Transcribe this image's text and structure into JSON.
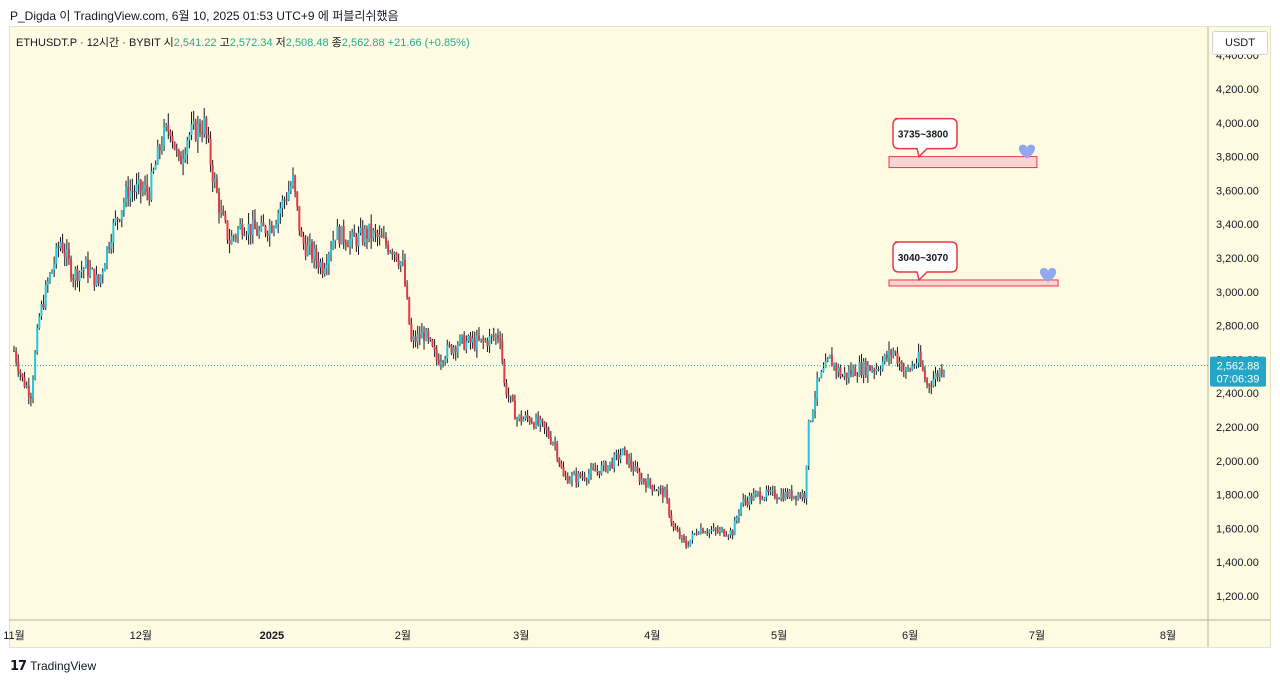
{
  "header": {
    "text": "P_Digda 이 TradingView.com, 6월 10, 2025 01:53 UTC+9 에 퍼블리쉬했음"
  },
  "symbol": {
    "name": "ETHUSDT.P · 12시간 · BYBIT",
    "open_label": "시",
    "open": "2,541.22",
    "high_label": "고",
    "high": "2,572.34",
    "low_label": "저",
    "low": "2,508.48",
    "close_label": "종",
    "close": "2,562.88",
    "change": "+21.66 (+0.85%)"
  },
  "unit_label": "USDT",
  "price_tag": {
    "price": "2,562.88",
    "countdown": "07:06:39"
  },
  "footer": {
    "logo_text": "TradingView",
    "logo_icon": "tradingview-logo-icon"
  },
  "chart_data": {
    "type": "candlestick",
    "y_axis": {
      "ticks": [
        1200,
        1400,
        1600,
        1800,
        2000,
        2200,
        2400,
        2600,
        2800,
        3000,
        3200,
        3400,
        3600,
        3800,
        4000,
        4200,
        4400
      ],
      "tick_labels": [
        "1,200.00",
        "1,400.00",
        "1,600.00",
        "1,800.00",
        "2,000.00",
        "2,200.00",
        "2,400.00",
        "2,600.00",
        "2,800.00",
        "3,000.00",
        "3,200.00",
        "3,400.00",
        "3,600.00",
        "3,800.00",
        "4,000.00",
        "4,200.00",
        "4,400.00"
      ],
      "position": "right"
    },
    "x_axis": {
      "labels": [
        "11월",
        "12월",
        "2025",
        "2월",
        "3월",
        "4월",
        "5월",
        "6월",
        "7월",
        "8월"
      ],
      "dates": [
        "2024-11-01",
        "2024-12-01",
        "2025-01-01",
        "2025-02-01",
        "2025-03-01",
        "2025-04-01",
        "2025-05-01",
        "2025-06-01",
        "2025-07-01",
        "2025-08-01"
      ]
    },
    "current_price": 2562.88,
    "up_color": "#26c6da",
    "down_color": "#e53945",
    "wick_color": "#131722",
    "anchors": [
      [
        "2024-11-01",
        2650
      ],
      [
        "2024-11-03",
        2480
      ],
      [
        "2024-11-05",
        2400
      ],
      [
        "2024-11-07",
        2850
      ],
      [
        "2024-11-09",
        3050
      ],
      [
        "2024-11-12",
        3300
      ],
      [
        "2024-11-15",
        3100
      ],
      [
        "2024-11-18",
        3150
      ],
      [
        "2024-11-21",
        3050
      ],
      [
        "2024-11-24",
        3350
      ],
      [
        "2024-11-28",
        3600
      ],
      [
        "2024-12-03",
        3600
      ],
      [
        "2024-12-06",
        3900
      ],
      [
        "2024-12-08",
        3980
      ],
      [
        "2024-12-10",
        3750
      ],
      [
        "2024-12-12",
        3920
      ],
      [
        "2024-12-16",
        3990
      ],
      [
        "2024-12-18",
        3700
      ],
      [
        "2024-12-20",
        3450
      ],
      [
        "2024-12-22",
        3300
      ],
      [
        "2024-12-25",
        3400
      ],
      [
        "2024-12-29",
        3350
      ],
      [
        "2025-01-01",
        3400
      ],
      [
        "2025-01-06",
        3650
      ],
      [
        "2025-01-08",
        3300
      ],
      [
        "2025-01-13",
        3150
      ],
      [
        "2025-01-16",
        3350
      ],
      [
        "2025-01-20",
        3300
      ],
      [
        "2025-01-24",
        3350
      ],
      [
        "2025-01-30",
        3250
      ],
      [
        "2025-02-01",
        3150
      ],
      [
        "2025-02-03",
        2700
      ],
      [
        "2025-02-06",
        2750
      ],
      [
        "2025-02-09",
        2600
      ],
      [
        "2025-02-14",
        2700
      ],
      [
        "2025-02-20",
        2700
      ],
      [
        "2025-02-24",
        2750
      ],
      [
        "2025-02-25",
        2450
      ],
      [
        "2025-02-28",
        2250
      ],
      [
        "2025-03-03",
        2250
      ],
      [
        "2025-03-06",
        2200
      ],
      [
        "2025-03-09",
        2100
      ],
      [
        "2025-03-11",
        1900
      ],
      [
        "2025-03-14",
        1900
      ],
      [
        "2025-03-18",
        1930
      ],
      [
        "2025-03-22",
        1980
      ],
      [
        "2025-03-25",
        2050
      ],
      [
        "2025-03-29",
        1900
      ],
      [
        "2025-04-01",
        1850
      ],
      [
        "2025-04-04",
        1800
      ],
      [
        "2025-04-06",
        1600
      ],
      [
        "2025-04-09",
        1500
      ],
      [
        "2025-04-12",
        1600
      ],
      [
        "2025-04-16",
        1580
      ],
      [
        "2025-04-20",
        1580
      ],
      [
        "2025-04-22",
        1750
      ],
      [
        "2025-04-26",
        1800
      ],
      [
        "2025-04-30",
        1800
      ],
      [
        "2025-05-04",
        1800
      ],
      [
        "2025-05-07",
        1800
      ],
      [
        "2025-05-08",
        2200
      ],
      [
        "2025-05-10",
        2450
      ],
      [
        "2025-05-13",
        2600
      ],
      [
        "2025-05-16",
        2500
      ],
      [
        "2025-05-20",
        2550
      ],
      [
        "2025-05-24",
        2550
      ],
      [
        "2025-05-28",
        2650
      ],
      [
        "2025-05-31",
        2520
      ],
      [
        "2025-06-03",
        2600
      ],
      [
        "2025-06-05",
        2450
      ],
      [
        "2025-06-07",
        2500
      ],
      [
        "2025-06-09",
        2562
      ]
    ],
    "annotations": [
      {
        "label": "3735~3800",
        "zone": [
          3735,
          3800
        ],
        "from": "2025-05-27",
        "to": "2025-07-01",
        "emoji": "heart"
      },
      {
        "label": "3040~3070",
        "zone": [
          3040,
          3070
        ],
        "from": "2025-05-27",
        "to": "2025-07-06",
        "emoji": "heart"
      }
    ]
  }
}
